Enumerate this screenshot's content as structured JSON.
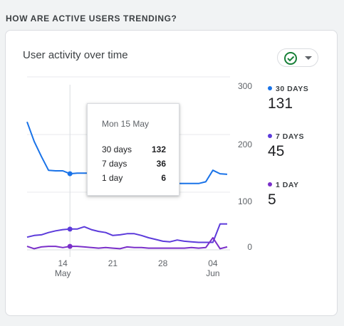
{
  "section": {
    "title": "HOW ARE ACTIVE USERS TRENDING?"
  },
  "card": {
    "title": "User activity over time"
  },
  "colors": {
    "series_30": "#1a73e8",
    "series_7": "#5c3bdb",
    "series_1": "#7a2fc9",
    "status_ok": "#188038"
  },
  "icons": {
    "status": "check-circle-icon",
    "dropdown": "caret-down-icon"
  },
  "tooltip": {
    "date": "Mon 15 May",
    "rows": [
      {
        "label": "30 days",
        "value": "132"
      },
      {
        "label": "7 days",
        "value": "36"
      },
      {
        "label": "1 day",
        "value": "6"
      }
    ]
  },
  "legend": [
    {
      "label": "30 DAYS",
      "value": "131"
    },
    {
      "label": "7 DAYS",
      "value": "45"
    },
    {
      "label": "1 DAY",
      "value": "5"
    }
  ],
  "chart_data": {
    "type": "line",
    "x_tick_labels": [
      "14",
      "21",
      "28",
      "04"
    ],
    "x_tick_sublabels": [
      "May",
      "",
      "",
      "Jun"
    ],
    "y_tick_labels": [
      "300",
      "200",
      "100",
      "0"
    ],
    "ylim": [
      0,
      300
    ],
    "dates": [
      "May 9",
      "May 10",
      "May 11",
      "May 12",
      "May 13",
      "May 14",
      "May 15",
      "May 16",
      "May 17",
      "May 18",
      "May 19",
      "May 20",
      "May 21",
      "May 22",
      "May 23",
      "May 24",
      "May 25",
      "May 26",
      "May 27",
      "May 28",
      "May 29",
      "May 30",
      "May 31",
      "Jun 1",
      "Jun 2",
      "Jun 3",
      "Jun 4",
      "Jun 5",
      "Jun 6"
    ],
    "highlight_index": 6,
    "series": [
      {
        "name": "30 days",
        "values": [
          222,
          188,
          162,
          138,
          137,
          137,
          132,
          133,
          133,
          133,
          133,
          133,
          133,
          135,
          137,
          140,
          132,
          127,
          120,
          117,
          115,
          115,
          115,
          115,
          115,
          118,
          138,
          132,
          131
        ]
      },
      {
        "name": "7 days",
        "values": [
          22,
          25,
          26,
          30,
          33,
          35,
          36,
          36,
          40,
          35,
          32,
          30,
          25,
          26,
          28,
          28,
          25,
          21,
          18,
          15,
          14,
          17,
          15,
          14,
          13,
          13,
          13,
          45,
          45
        ]
      },
      {
        "name": "1 day",
        "values": [
          6,
          2,
          5,
          6,
          6,
          4,
          6,
          6,
          5,
          4,
          3,
          4,
          3,
          2,
          5,
          4,
          4,
          3,
          3,
          3,
          3,
          3,
          3,
          4,
          3,
          4,
          21,
          2,
          5
        ]
      }
    ]
  }
}
